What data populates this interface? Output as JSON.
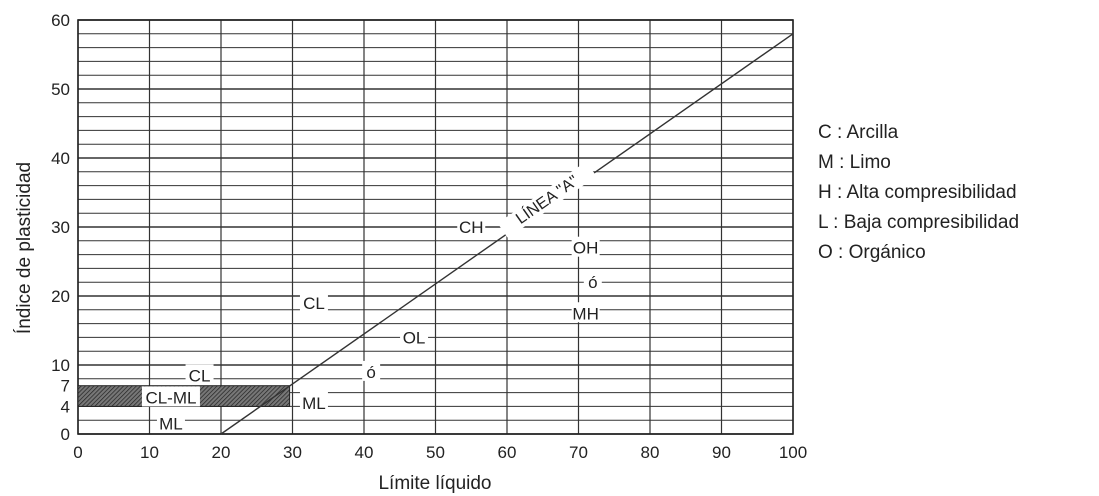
{
  "chart_data": {
    "type": "line",
    "title": "",
    "xlabel": "Límite líquido",
    "ylabel": "Índice de plasticidad",
    "xlim": [
      0,
      100
    ],
    "ylim": [
      0,
      60
    ],
    "x_ticks": [
      0,
      10,
      20,
      30,
      40,
      50,
      60,
      70,
      80,
      90,
      100
    ],
    "y_ticks": [
      "0",
      "4",
      "7",
      "10",
      "20",
      "30",
      "40",
      "50",
      "60"
    ],
    "grid": true,
    "series": [
      {
        "name": "LÍNEA \"A\"",
        "x": [
          20,
          100
        ],
        "y": [
          0,
          58
        ]
      }
    ],
    "hatched_zone": {
      "x": [
        0,
        29.6
      ],
      "y": [
        4,
        7
      ]
    },
    "zone_labels": [
      {
        "text": "CH",
        "x": 55,
        "y": 30
      },
      {
        "text": "CL",
        "x": 33,
        "y": 19
      },
      {
        "text": "OL",
        "x": 47,
        "y": 14
      },
      {
        "text": "ó",
        "x": 41,
        "y": 9
      },
      {
        "text": "ML",
        "x": 33,
        "y": 4.5
      },
      {
        "text": "OH",
        "x": 71,
        "y": 27
      },
      {
        "text": "ó",
        "x": 72,
        "y": 22
      },
      {
        "text": "MH",
        "x": 71,
        "y": 17.5
      },
      {
        "text": "CL",
        "x": 17,
        "y": 8.5
      },
      {
        "text": "CL-ML",
        "x": 13,
        "y": 5.3
      },
      {
        "text": "ML",
        "x": 13,
        "y": 1.5
      }
    ]
  },
  "legend": [
    "C : Arcilla",
    "M : Limo",
    "H : Alta compresibilidad",
    "L : Baja compresibilidad",
    "O : Orgánico"
  ]
}
